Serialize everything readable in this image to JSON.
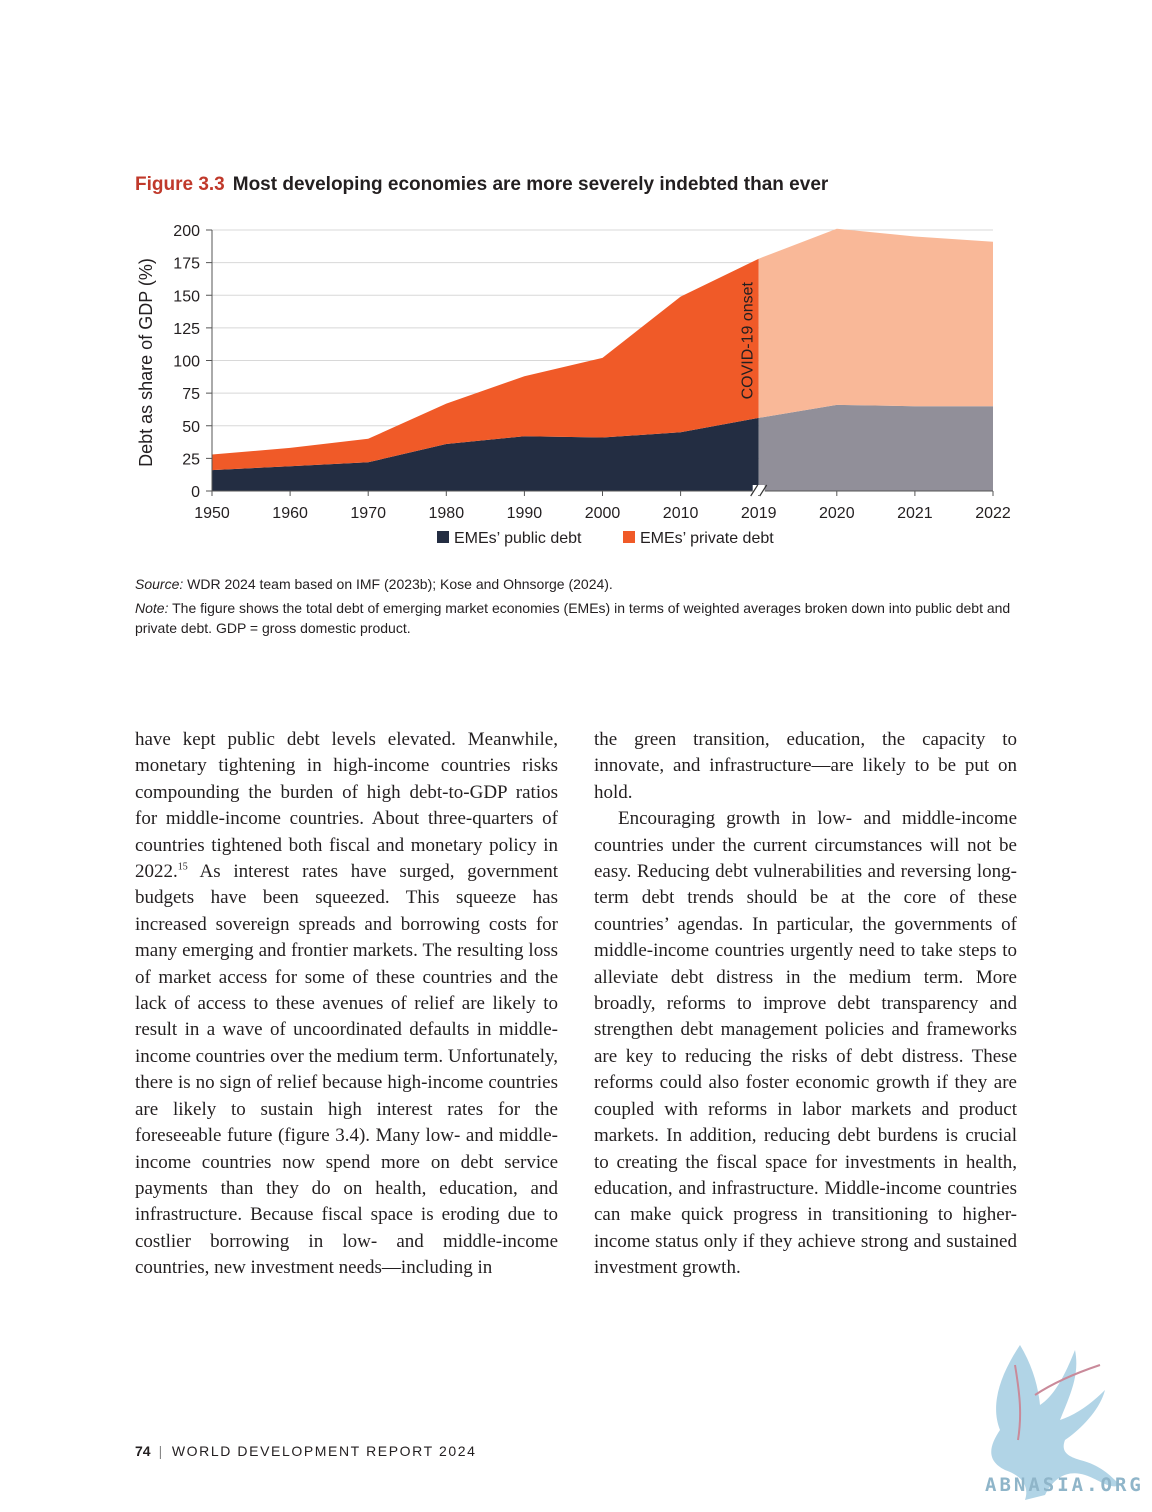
{
  "figure": {
    "label": "Figure 3.3",
    "title": "Most developing economies are more severely indebted than ever",
    "source_label": "Source:",
    "source_text": " WDR 2024 team based on IMF (2023b); Kose and Ohnsorge (2024).",
    "note_label": "Note:",
    "note_text": " The figure shows the total debt of emerging market economies (EMEs) in terms of weighted averages broken down into public debt and private debt. GDP = gross domestic product."
  },
  "chart_data": {
    "type": "area",
    "stacked": true,
    "x": [
      "1950",
      "1960",
      "1970",
      "1980",
      "1990",
      "2000",
      "2010",
      "2019",
      "2020",
      "2021",
      "2022"
    ],
    "series": [
      {
        "name": "EMEs’ public debt",
        "values": [
          16,
          19,
          22,
          36,
          42,
          41,
          45,
          56,
          66,
          65,
          65
        ],
        "color": "#232d42",
        "highlight_color": "#918f99"
      },
      {
        "name": "EMEs’ private debt",
        "values": [
          12,
          14,
          18,
          31,
          46,
          61,
          104,
          122,
          135,
          130,
          126
        ],
        "color": "#f05a28",
        "highlight_color": "#f9b898"
      }
    ],
    "ylabel": "Debt as share of GDP (%)",
    "ylim": [
      0,
      200
    ],
    "yticks": [
      0,
      25,
      50,
      75,
      100,
      125,
      150,
      175,
      200
    ],
    "grid": true,
    "axis_break_after": "2019",
    "annotation": {
      "text": "COVID-19 onset",
      "at": "2019"
    },
    "legend_position": "bottom-center"
  },
  "body": {
    "left_column": "have kept public debt levels elevated. Meanwhile, monetary tightening in high-income countries risks compounding the burden of high debt-to-GDP ratios for middle-income countries. About three-quarters of countries tightened both fiscal and monetary policy in 2022.",
    "left_footnote": "15",
    "left_column_cont": " As interest rates have surged, government budgets have been squeezed. This squeeze has increased sovereign spreads and borrowing costs for many emerging and frontier markets. The resulting loss of market access for some of these countries and the lack of access to these avenues of relief are likely to result in a wave of uncoordinated defaults in middle-income countries over the medium term. Unfortunately, there is no sign of relief because high-income countries are likely to sustain high interest rates for the foreseeable future (figure 3.4). Many low- and middle-income countries now spend more on debt service payments than they do on health, education, and infrastructure. Because fiscal space is eroding due to costlier borrowing in low- and middle-income countries, new investment needs—including in",
    "right_p1": "the green transition, education, the capacity to innovate, and infrastructure—are likely to be put on hold.",
    "right_p2": "Encouraging growth in low- and middle-income countries under the current circumstances will not be easy. Reducing debt vulnerabilities and reversing long-term debt trends should be at the core of these countries’ agendas. In particular, the governments of middle-income countries urgently need to take steps to alleviate debt distress in the medium term. More broadly, reforms to improve debt transparency and strengthen debt management policies and frameworks are key to reducing the risks of debt distress. These reforms could also foster economic growth if they are coupled with reforms in labor markets and product markets. In addition, reducing debt burdens is crucial to creating the fiscal space for investments in health, education, and infrastructure. Middle-income countries can make quick progress in transitioning to higher-income status only if they achieve strong and sustained investment growth."
  },
  "footer": {
    "page_number": "74",
    "separator": "|",
    "publication": "WORLD DEVELOPMENT REPORT 2024"
  },
  "watermark": {
    "text": "ABNASIA.ORG",
    "color": "#8fb5c9"
  }
}
